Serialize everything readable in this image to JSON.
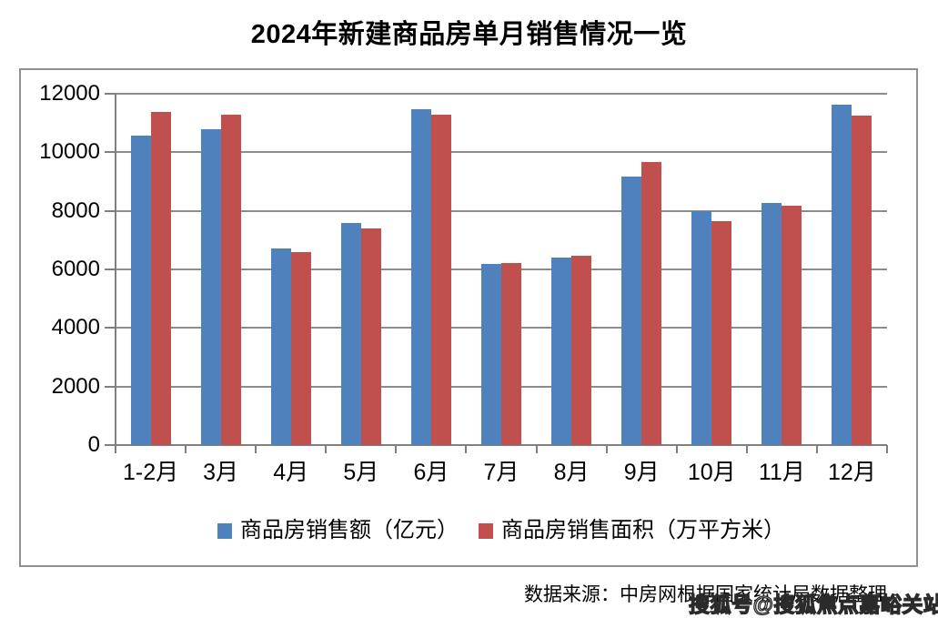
{
  "title": "2024年新建商品房单月销售情况一览",
  "chart_data": {
    "type": "bar",
    "categories": [
      "1-2月",
      "3月",
      "4月",
      "5月",
      "6月",
      "7月",
      "8月",
      "9月",
      "10月",
      "11月",
      "12月"
    ],
    "series": [
      {
        "name": "商品房销售额（亿元）",
        "color": "#4F81BD",
        "values": [
          10566,
          10789,
          6712,
          7598,
          11468,
          6197,
          6393,
          9157,
          7975,
          8270,
          11625
        ]
      },
      {
        "name": "商品房销售面积（万平方米）",
        "color": "#C0504D",
        "values": [
          11369,
          11299,
          6584,
          7390,
          11274,
          6233,
          6453,
          9682,
          7646,
          8188,
          11267
        ]
      }
    ],
    "ylim": [
      0,
      12000
    ],
    "yticks": [
      0,
      2000,
      4000,
      6000,
      8000,
      10000,
      12000
    ],
    "grid": true,
    "legend_position": "bottom"
  },
  "footer": {
    "source_text": "数据来源：中房网根据国家统计局数据整理"
  },
  "watermark": {
    "text": "搜狐号@搜狐焦点嘉峪关站"
  },
  "colors": {
    "series_blue": "#4F81BD",
    "series_red": "#C0504D",
    "gridline": "#8C8C8C",
    "axis": "#808080",
    "chart_border": "#909090",
    "background": "#FFFFFF",
    "title_text": "#000000"
  }
}
